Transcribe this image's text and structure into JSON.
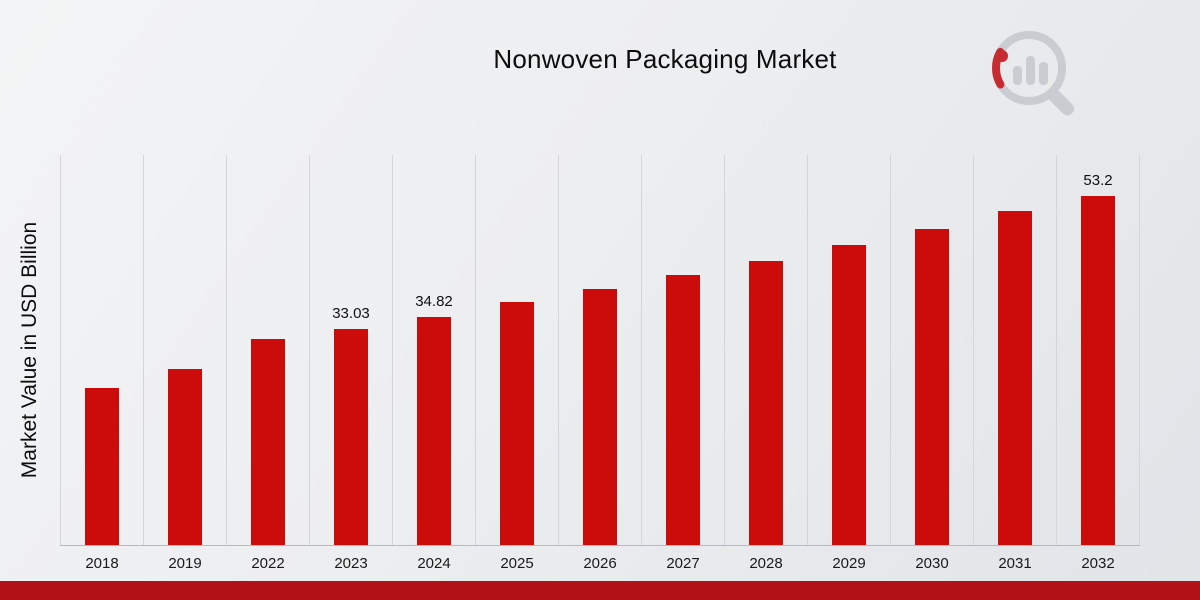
{
  "chart_data": {
    "type": "bar",
    "title": "Nonwoven Packaging Market",
    "ylabel": "Market Value in USD Billion",
    "xlabel": "",
    "categories": [
      "2018",
      "2019",
      "2022",
      "2023",
      "2024",
      "2025",
      "2026",
      "2027",
      "2028",
      "2029",
      "2030",
      "2031",
      "2032"
    ],
    "values": [
      24.0,
      26.8,
      31.4,
      33.03,
      34.82,
      37.0,
      39.0,
      41.2,
      43.3,
      45.8,
      48.2,
      51.0,
      53.2
    ],
    "bar_labels": [
      "",
      "",
      "",
      "33.03",
      "34.82",
      "",
      "",
      "",
      "",
      "",
      "",
      "",
      "53.2"
    ],
    "ylim": [
      0,
      59.5
    ],
    "grid": "vertical-only",
    "legend": "none",
    "bar_color": "#cc0b0b"
  },
  "footer": {
    "accent_color": "#b01218"
  },
  "logo": {
    "icon": "magnifier-bar-chart-logo",
    "ring_color": "#c6cad0",
    "accent_color": "#c4161c"
  }
}
